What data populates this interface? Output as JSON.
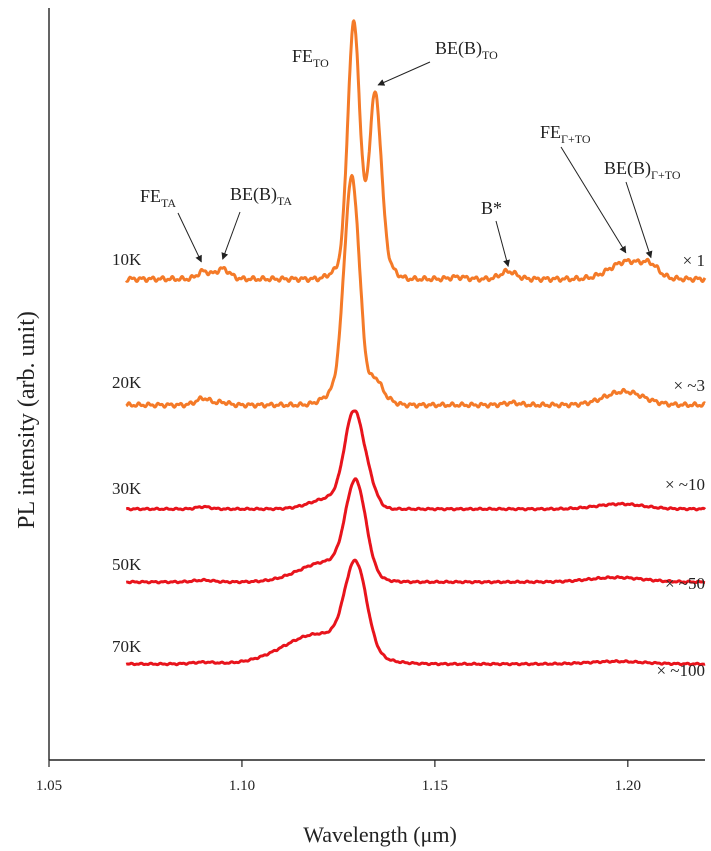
{
  "chart_data": {
    "type": "line",
    "xlabel": "Wavelength (μm)",
    "ylabel": "PL intensity (arb. unit)",
    "xlim": [
      1.05,
      1.22
    ],
    "x_ticks": [
      "1.05",
      "1.10",
      "1.15",
      "1.20"
    ],
    "x_tick_values": [
      1.05,
      1.1,
      1.15,
      1.2
    ],
    "x_range": [
      1.07,
      1.22
    ],
    "y_axis_ticks": false,
    "grid": false,
    "series": [
      {
        "name": "10K",
        "scale_label": "× 1",
        "color": "#f47a28",
        "baseline_rel": 0.0,
        "peaks": [
          {
            "x": 1.09,
            "amp": 0.03,
            "w": 0.0015
          },
          {
            "x": 1.095,
            "amp": 0.04,
            "w": 0.0018
          },
          {
            "x": 1.129,
            "amp": 1.0,
            "w": 0.0016
          },
          {
            "x": 1.1245,
            "amp": 0.03,
            "w": 0.002
          },
          {
            "x": 1.1345,
            "amp": 0.72,
            "w": 0.0016
          },
          {
            "x": 1.138,
            "amp": 0.04,
            "w": 0.002
          },
          {
            "x": 1.156,
            "amp": 0.008,
            "w": 0.002
          },
          {
            "x": 1.169,
            "amp": 0.03,
            "w": 0.002
          },
          {
            "x": 1.2,
            "amp": 0.07,
            "w": 0.0045
          },
          {
            "x": 1.206,
            "amp": 0.035,
            "w": 0.002
          }
        ]
      },
      {
        "name": "20K",
        "scale_label": "× ~3",
        "color": "#f47a28",
        "peaks": [
          {
            "x": 1.09,
            "amp": 0.03,
            "w": 0.0018
          },
          {
            "x": 1.095,
            "amp": 0.012,
            "w": 0.0015
          },
          {
            "x": 1.1285,
            "amp": 1.0,
            "w": 0.002
          },
          {
            "x": 1.124,
            "amp": 0.05,
            "w": 0.003
          },
          {
            "x": 1.1345,
            "amp": 0.1,
            "w": 0.0015
          },
          {
            "x": 1.137,
            "amp": 0.03,
            "w": 0.002
          },
          {
            "x": 1.17,
            "amp": 0.01,
            "w": 0.002
          },
          {
            "x": 1.199,
            "amp": 0.06,
            "w": 0.005
          }
        ]
      },
      {
        "name": "30K",
        "scale_label": "× ~10",
        "color": "#e8141c",
        "peaks": [
          {
            "x": 1.09,
            "amp": 0.025,
            "w": 0.0018
          },
          {
            "x": 1.129,
            "amp": 1.0,
            "w": 0.0024
          },
          {
            "x": 1.123,
            "amp": 0.12,
            "w": 0.005
          },
          {
            "x": 1.133,
            "amp": 0.2,
            "w": 0.002
          },
          {
            "x": 1.198,
            "amp": 0.055,
            "w": 0.006
          }
        ]
      },
      {
        "name": "50K",
        "scale_label": "× ~50",
        "color": "#e8141c",
        "peaks": [
          {
            "x": 1.09,
            "amp": 0.02,
            "w": 0.0025
          },
          {
            "x": 1.1295,
            "amp": 1.0,
            "w": 0.0026
          },
          {
            "x": 1.122,
            "amp": 0.22,
            "w": 0.007
          },
          {
            "x": 1.197,
            "amp": 0.05,
            "w": 0.007
          }
        ]
      },
      {
        "name": "70K",
        "scale_label": "× ~100",
        "color": "#e8141c",
        "peaks": [
          {
            "x": 1.09,
            "amp": 0.02,
            "w": 0.003
          },
          {
            "x": 1.1295,
            "amp": 1.0,
            "w": 0.0028
          },
          {
            "x": 1.12,
            "amp": 0.35,
            "w": 0.009
          },
          {
            "x": 1.197,
            "amp": 0.03,
            "w": 0.007
          }
        ]
      }
    ],
    "annotations": [
      {
        "id": "fe-ta",
        "main": "FE",
        "sub": "TA",
        "x": 1.09
      },
      {
        "id": "be-b-ta",
        "main": "BE(B)",
        "sub": "TA",
        "x": 1.095
      },
      {
        "id": "fe-to",
        "main": "FE",
        "sub": "TO",
        "x": 1.129
      },
      {
        "id": "be-b-to",
        "main": "BE(B)",
        "sub": "TO",
        "x": 1.1345
      },
      {
        "id": "b-star",
        "main": "B*",
        "sub": "",
        "x": 1.169
      },
      {
        "id": "fe-gamma-to",
        "main": "FE",
        "sub": "Γ+TO",
        "x": 1.2
      },
      {
        "id": "be-b-gamma-to",
        "main": "BE(B)",
        "sub": "Γ+TO",
        "x": 1.206
      }
    ]
  }
}
